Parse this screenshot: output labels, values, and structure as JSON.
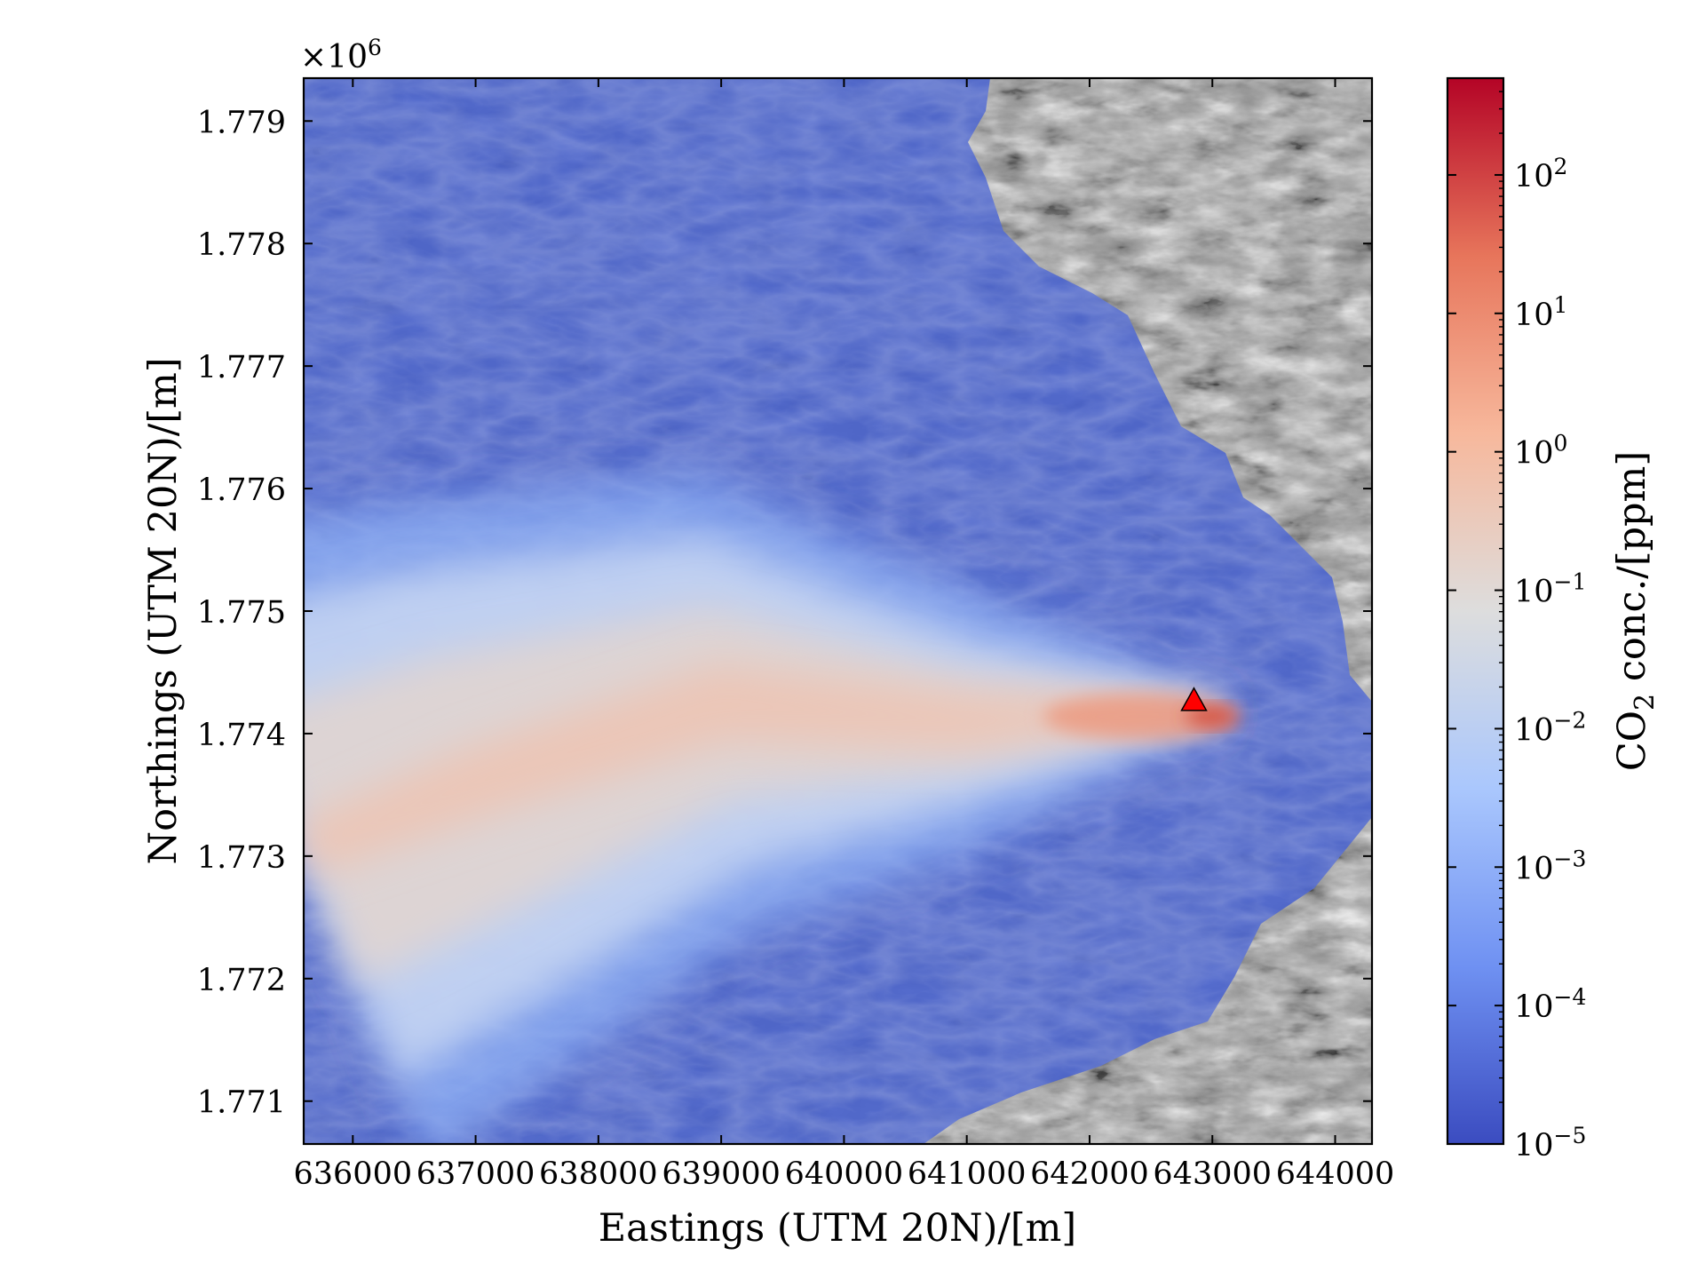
{
  "chart_data": {
    "type": "heatmap",
    "subtype": "gas-dispersion concentration map over shaded-relief terrain",
    "x_axis": {
      "label": "Eastings (UTM 20N)/[m]",
      "range": [
        635600,
        644300
      ],
      "ticks": [
        636000,
        637000,
        638000,
        639000,
        640000,
        641000,
        642000,
        643000,
        644000
      ],
      "tick_labels": [
        "636000",
        "637000",
        "638000",
        "639000",
        "640000",
        "641000",
        "642000",
        "643000",
        "644000"
      ]
    },
    "y_axis": {
      "label": "Northings (UTM 20N)/[m]",
      "offset_text": "×10",
      "offset_exp": "6",
      "range": [
        1770650,
        1779350
      ],
      "ticks": [
        1771000,
        1772000,
        1773000,
        1774000,
        1775000,
        1776000,
        1777000,
        1778000,
        1779000
      ],
      "tick_labels": [
        "1.771",
        "1.772",
        "1.773",
        "1.774",
        "1.775",
        "1.776",
        "1.777",
        "1.778",
        "1.779"
      ]
    },
    "colorbar": {
      "label_pre": "CO",
      "label_sub": "2",
      "label_post": " conc./[ppm]",
      "scale": "log",
      "colormap": "coolwarm",
      "range": [
        1e-05,
        500
      ],
      "ticks": [
        {
          "value": 1e-05,
          "base": "10",
          "exp": "−5"
        },
        {
          "value": 0.0001,
          "base": "10",
          "exp": "−4"
        },
        {
          "value": 0.001,
          "base": "10",
          "exp": "−3"
        },
        {
          "value": 0.01,
          "base": "10",
          "exp": "−2"
        },
        {
          "value": 0.1,
          "base": "10",
          "exp": "−1"
        },
        {
          "value": 1,
          "base": "10",
          "exp": "0"
        },
        {
          "value": 10,
          "base": "10",
          "exp": "1"
        },
        {
          "value": 100,
          "base": "10",
          "exp": "2"
        }
      ],
      "colors": [
        "#3b4cc0",
        "#6f91f2",
        "#aac7fd",
        "#dddddd",
        "#f7b89c",
        "#e7755b",
        "#b40426"
      ]
    },
    "source": {
      "x": 642850,
      "y": 1774270,
      "marker": "triangle",
      "color": "#ff0000"
    },
    "plume": {
      "direction": "west-southwest from source",
      "peak_ppm": 100,
      "axis_points": [
        {
          "x": 643050,
          "y": 1774200
        },
        {
          "x": 641000,
          "y": 1774100
        },
        {
          "x": 639000,
          "y": 1774250
        },
        {
          "x": 637000,
          "y": 1773600
        },
        {
          "x": 635600,
          "y": 1773050
        }
      ]
    },
    "terrain": {
      "rendering": "grayscale hillshade",
      "covered_region": "blue-shaded domain west of source"
    },
    "grid": false
  }
}
